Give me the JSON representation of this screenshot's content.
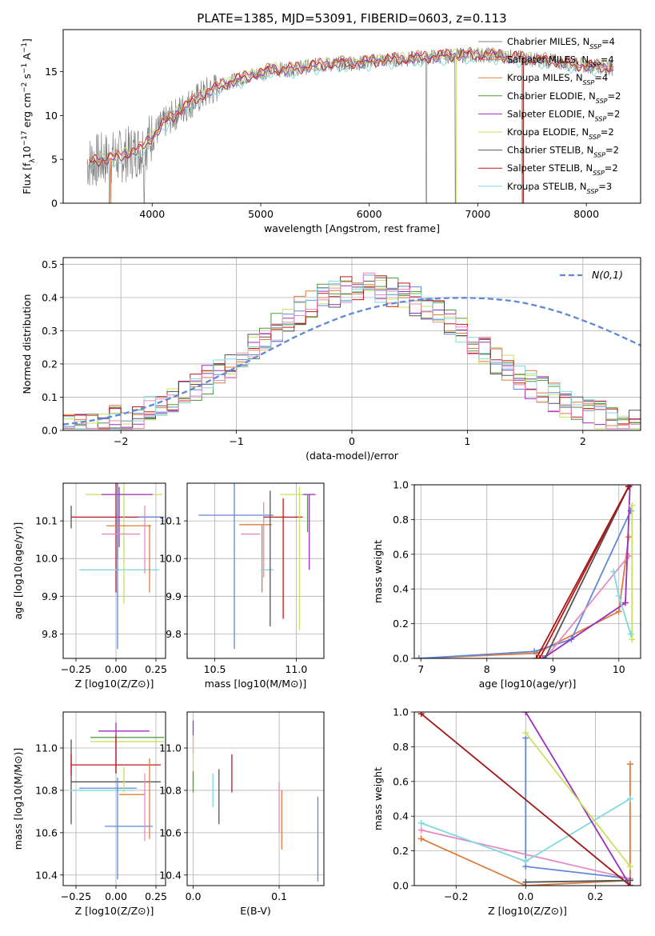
{
  "figure": {
    "title": "PLATE=1385, MJD=53091, FIBERID=0603, z=0.113"
  },
  "colors": {
    "Chabrier MILES": "#808080",
    "Salpeter MILES": "#e07b39",
    "Kroupa MILES": "#e07b39",
    "Chabrier ELODIE": "#4d9a3a",
    "Salpeter ELODIE": "#9b30c0",
    "Kroupa ELODIE": "#c9e060",
    "Chabrier STELIB": "#555555",
    "Salpeter STELIB": "#c01818",
    "Kroupa STELIB": "#80d8e0",
    "blue": "#5f88d6",
    "pink": "#e58ac0",
    "orange": "#e07b39",
    "darkred": "#a01818"
  },
  "chart_data": [
    {
      "id": "spectrum",
      "type": "line",
      "xlabel": "wavelength [Angstrom, rest frame]",
      "ylabel": "Flux [f_λ10^-17 erg cm^-2 s^-1 A^-1]",
      "xlim": [
        3180,
        8500
      ],
      "ylim": [
        0,
        19.8
      ],
      "xticks": [
        4000,
        5000,
        6000,
        7000,
        8000
      ],
      "yticks": [
        0,
        5,
        10,
        15
      ],
      "legend_position": "upper right",
      "legend": [
        {
          "label": "Chabrier MILES, N_SSP=4",
          "color": "#808080"
        },
        {
          "label": "Salpeter MILES, N_SSP=4",
          "color": "#e07b39"
        },
        {
          "label": "Kroupa MILES, N_SSP=4",
          "color": "#e07b39"
        },
        {
          "label": "Chabrier ELODIE, N_SSP=2",
          "color": "#4d9a3a"
        },
        {
          "label": "Salpeter ELODIE, N_SSP=2",
          "color": "#9b30c0"
        },
        {
          "label": "Kroupa ELODIE, N_SSP=2",
          "color": "#c9e060"
        },
        {
          "label": "Chabrier STELIB, N_SSP=2",
          "color": "#555555"
        },
        {
          "label": "Salpeter STELIB, N_SSP=2",
          "color": "#c01818"
        },
        {
          "label": "Kroupa STELIB, N_SSP=3",
          "color": "#80d8e0"
        }
      ],
      "continuum": {
        "x": [
          3400,
          3500,
          3700,
          3900,
          4100,
          4300,
          4500,
          4700,
          4900,
          5100,
          5300,
          5500,
          5700,
          5900,
          6100,
          6300,
          6500,
          6700,
          6900,
          7100,
          7300,
          7500,
          7700,
          7900,
          8100,
          8250
        ],
        "y": [
          4.6,
          4.9,
          5.3,
          6.2,
          9.0,
          11.0,
          12.6,
          13.8,
          14.5,
          15.2,
          15.3,
          15.7,
          15.9,
          16.0,
          16.3,
          16.4,
          16.6,
          16.8,
          16.9,
          16.9,
          16.7,
          16.4,
          16.2,
          15.8,
          15.6,
          15.4
        ]
      }
    },
    {
      "id": "residuals",
      "type": "bar",
      "xlabel": "(data-model)/error",
      "ylabel": "Normed distribution",
      "xlim": [
        -2.5,
        2.5
      ],
      "ylim": [
        0,
        0.52
      ],
      "xticks": [
        -2,
        -1,
        0,
        1,
        2
      ],
      "yticks": [
        0.0,
        0.1,
        0.2,
        0.3,
        0.4,
        0.5
      ],
      "legend_label": "N(0,1)",
      "legend_position": "upper right",
      "bin_width": 0.1,
      "bin_start": -2.5,
      "reference_values": [
        0.018,
        0.022,
        0.027,
        0.033,
        0.04,
        0.048,
        0.058,
        0.068,
        0.08,
        0.093,
        0.107,
        0.122,
        0.138,
        0.155,
        0.172,
        0.19,
        0.208,
        0.226,
        0.244,
        0.262,
        0.28,
        0.296,
        0.312,
        0.326,
        0.34,
        0.352,
        0.362,
        0.371,
        0.379,
        0.385,
        0.39,
        0.394,
        0.396,
        0.398,
        0.399,
        0.399,
        0.398,
        0.396,
        0.393,
        0.389,
        0.383,
        0.375,
        0.366,
        0.356,
        0.344,
        0.331,
        0.318,
        0.303,
        0.288,
        0.272,
        0.256
      ]
    },
    {
      "id": "age-vs-Z",
      "type": "scatter",
      "xlabel": "Z [log10(Z/Z⊙)]",
      "ylabel": "age [log10(age/yr)]",
      "xlim": [
        -0.33,
        0.31
      ],
      "ylim": [
        9.735,
        10.2
      ],
      "xticks": [
        -0.25,
        0.0,
        0.25
      ],
      "xticklabels": [
        "−0.25",
        "0.00",
        "0.25"
      ],
      "yticks": [
        9.8,
        9.9,
        10.0,
        10.1
      ],
      "points": [
        {
          "x": -0.28,
          "y": 10.11,
          "xerr": 0.0,
          "yerr": 0.03,
          "color": "#555555"
        },
        {
          "x": 0.0,
          "y": 10.11,
          "xerr": 0.28,
          "yerr": 0.0,
          "color": "#c01818"
        },
        {
          "x": 0.0,
          "y": 10.11,
          "xerr": 0.0,
          "yerr": 0.2,
          "color": "#c01818"
        },
        {
          "x": 0.02,
          "y": 9.97,
          "xerr": 0.25,
          "yerr": 0.0,
          "color": "#80d8e0"
        },
        {
          "x": 0.05,
          "y": 10.06,
          "xerr": 0.0,
          "yerr": 0.18,
          "color": "#c9e060"
        },
        {
          "x": 0.05,
          "y": 10.17,
          "xerr": 0.24,
          "yerr": 0.0,
          "color": "#c9e060"
        },
        {
          "x": 0.07,
          "y": 10.17,
          "xerr": 0.16,
          "yerr": 0.0,
          "color": "#9b30c0"
        },
        {
          "x": 0.01,
          "y": 10.12,
          "xerr": 0.0,
          "yerr": 0.12,
          "color": "#4d9a3a"
        },
        {
          "x": 0.02,
          "y": 10.11,
          "xerr": 0.0,
          "yerr": 0.08,
          "color": "#9b30c0"
        },
        {
          "x": 0.01,
          "y": 10.0,
          "xerr": 0.0,
          "yerr": 0.24,
          "color": "#5f88d6"
        },
        {
          "x": 0.03,
          "y": 10.065,
          "xerr": 0.12,
          "yerr": 0.0,
          "color": "#e58ac0"
        },
        {
          "x": 0.08,
          "y": 10.087,
          "xerr": 0.14,
          "yerr": 0.0,
          "color": "#e07b39"
        },
        {
          "x": 0.18,
          "y": 10.05,
          "xerr": 0.0,
          "yerr": 0.09,
          "color": "#e58ac0"
        },
        {
          "x": 0.21,
          "y": 10.0,
          "xerr": 0.0,
          "yerr": 0.09,
          "color": "#e07b39"
        },
        {
          "x": 0.22,
          "y": 10.11,
          "xerr": 0.08,
          "yerr": 0.0,
          "color": "#5f88d6"
        }
      ]
    },
    {
      "id": "age-vs-mass",
      "type": "scatter",
      "xlabel": "mass [log10(M/M⊙)]",
      "ylabel": "",
      "xlim": [
        10.33,
        11.17
      ],
      "ylim": [
        9.735,
        10.2
      ],
      "xticks": [
        10.5,
        11.0
      ],
      "yticks": [
        9.8,
        9.9,
        10.0,
        10.1
      ],
      "points": [
        {
          "x": 10.62,
          "y": 10.0,
          "xerr": 0.0,
          "yerr": 0.24,
          "color": "#5f88d6"
        },
        {
          "x": 10.63,
          "y": 10.115,
          "xerr": 0.23,
          "yerr": 0.0,
          "color": "#5f88d6"
        },
        {
          "x": 10.75,
          "y": 10.09,
          "xerr": 0.1,
          "yerr": 0.0,
          "color": "#e07b39"
        },
        {
          "x": 10.72,
          "y": 10.065,
          "xerr": 0.06,
          "yerr": 0.0,
          "color": "#e58ac0"
        },
        {
          "x": 10.79,
          "y": 10.0,
          "xerr": 0.0,
          "yerr": 0.09,
          "color": "#e07b39"
        },
        {
          "x": 10.8,
          "y": 10.05,
          "xerr": 0.0,
          "yerr": 0.1,
          "color": "#e58ac0"
        },
        {
          "x": 10.82,
          "y": 9.97,
          "xerr": 0.04,
          "yerr": 0.0,
          "color": "#80d8e0"
        },
        {
          "x": 10.84,
          "y": 10.0,
          "xerr": 0.0,
          "yerr": 0.18,
          "color": "#555555"
        },
        {
          "x": 10.92,
          "y": 10.11,
          "xerr": 0.12,
          "yerr": 0.0,
          "color": "#c01818"
        },
        {
          "x": 10.92,
          "y": 10.0,
          "xerr": 0.0,
          "yerr": 0.16,
          "color": "#c01818"
        },
        {
          "x": 11.0,
          "y": 10.17,
          "xerr": 0.1,
          "yerr": 0.0,
          "color": "#c9e060"
        },
        {
          "x": 11.02,
          "y": 10.0,
          "xerr": 0.0,
          "yerr": 0.19,
          "color": "#c9e060"
        },
        {
          "x": 11.08,
          "y": 10.17,
          "xerr": 0.04,
          "yerr": 0.0,
          "color": "#9b30c0"
        },
        {
          "x": 11.08,
          "y": 10.07,
          "xerr": 0.0,
          "yerr": 0.1,
          "color": "#9b30c0"
        },
        {
          "x": 11.07,
          "y": 10.12,
          "xerr": 0.0,
          "yerr": 0.05,
          "color": "#4d9a3a"
        }
      ]
    },
    {
      "id": "mass-weight-vs-age",
      "type": "line",
      "xlabel": "age [log10(age/yr)]",
      "ylabel": "mass weight",
      "xlim": [
        6.9,
        10.33
      ],
      "ylim": [
        0,
        1.0
      ],
      "xticks": [
        7,
        8,
        9,
        10
      ],
      "yticks": [
        0.0,
        0.2,
        0.4,
        0.6,
        0.8,
        1.0
      ],
      "series": [
        {
          "color": "#e07b39",
          "x": [
            6.97,
            8.75,
            10.0,
            10.15
          ],
          "y": [
            0.0,
            0.03,
            0.27,
            0.7
          ]
        },
        {
          "color": "#5f88d6",
          "x": [
            6.97,
            8.72,
            9.28,
            10.18
          ],
          "y": [
            0.0,
            0.04,
            0.11,
            0.85
          ]
        },
        {
          "color": "#e58ac0",
          "x": [
            8.88,
            10.15
          ],
          "y": [
            0.0,
            0.59
          ]
        },
        {
          "color": "#9b30c0",
          "x": [
            8.85,
            10.1,
            10.17
          ],
          "y": [
            0.0,
            0.32,
            1.0
          ]
        },
        {
          "color": "#555555",
          "x": [
            8.88,
            10.15
          ],
          "y": [
            0.0,
            0.99
          ]
        },
        {
          "color": "#c01818",
          "x": [
            8.8,
            10.15
          ],
          "y": [
            0.0,
            0.99
          ]
        },
        {
          "color": "#a01818",
          "x": [
            8.75,
            10.15
          ],
          "y": [
            0.0,
            0.99
          ]
        },
        {
          "color": "#c9e060",
          "x": [
            10.2,
            10.2
          ],
          "y": [
            0.11,
            0.88
          ]
        },
        {
          "color": "#80d8e0",
          "x": [
            9.92,
            10.0,
            10.18
          ],
          "y": [
            0.5,
            0.36,
            0.14
          ]
        }
      ]
    },
    {
      "id": "mass-vs-Z",
      "type": "scatter",
      "xlabel": "Z [log10(Z/Z⊙)]",
      "ylabel": "mass [log10(M/M⊙)]",
      "xlim": [
        -0.33,
        0.31
      ],
      "ylim": [
        10.35,
        11.17
      ],
      "xticks": [
        -0.25,
        0.0,
        0.25
      ],
      "xticklabels": [
        "−0.25",
        "0.00",
        "0.25"
      ],
      "yticks": [
        10.4,
        10.6,
        10.8,
        11.0
      ],
      "points": [
        {
          "x": -0.28,
          "y": 10.84,
          "xerr": 0.0,
          "yerr": 0.2,
          "color": "#555555"
        },
        {
          "x": 0.0,
          "y": 10.84,
          "xerr": 0.28,
          "yerr": 0.0,
          "color": "#555555"
        },
        {
          "x": 0.0,
          "y": 10.92,
          "xerr": 0.28,
          "yerr": 0.0,
          "color": "#c01818"
        },
        {
          "x": -0.28,
          "y": 10.92,
          "xerr": 0.0,
          "yerr": 0.05,
          "color": "#c01818"
        },
        {
          "x": 0.07,
          "y": 11.05,
          "xerr": 0.23,
          "yerr": 0.0,
          "color": "#4d9a3a"
        },
        {
          "x": 0.07,
          "y": 11.03,
          "xerr": 0.23,
          "yerr": 0.0,
          "color": "#c9e060"
        },
        {
          "x": 0.05,
          "y": 11.08,
          "xerr": 0.16,
          "yerr": 0.0,
          "color": "#9b30c0"
        },
        {
          "x": 0.0,
          "y": 11.0,
          "xerr": 0.0,
          "yerr": 0.12,
          "color": "#9b30c0"
        },
        {
          "x": -0.09,
          "y": 10.8,
          "xerr": 0.2,
          "yerr": 0.0,
          "color": "#80d8e0"
        },
        {
          "x": -0.05,
          "y": 10.81,
          "xerr": 0.18,
          "yerr": 0.0,
          "color": "#5f88d6"
        },
        {
          "x": 0.08,
          "y": 10.63,
          "xerr": 0.15,
          "yerr": 0.0,
          "color": "#5f88d6"
        },
        {
          "x": 0.01,
          "y": 10.62,
          "xerr": 0.0,
          "yerr": 0.24,
          "color": "#5f88d6"
        },
        {
          "x": 0.05,
          "y": 10.85,
          "xerr": 0.0,
          "yerr": 0.06,
          "color": "#c9e060"
        },
        {
          "x": 0.1,
          "y": 10.78,
          "xerr": 0.08,
          "yerr": 0.0,
          "color": "#e07b39"
        },
        {
          "x": 0.18,
          "y": 10.72,
          "xerr": 0.0,
          "yerr": 0.16,
          "color": "#e58ac0"
        },
        {
          "x": 0.21,
          "y": 10.76,
          "xerr": 0.0,
          "yerr": 0.19,
          "color": "#e07b39"
        },
        {
          "x": 0.0,
          "y": 10.97,
          "xerr": 0.0,
          "yerr": 0.09,
          "color": "#c01818"
        }
      ]
    },
    {
      "id": "mass-vs-ebv",
      "type": "scatter",
      "xlabel": "E(B-V)",
      "ylabel": "",
      "xlim": [
        -0.007,
        0.152
      ],
      "ylim": [
        10.35,
        11.17
      ],
      "xticks": [
        0.0,
        0.1
      ],
      "yticks": [
        10.4,
        10.6,
        10.8,
        11.0
      ],
      "points": [
        {
          "x": 0.0,
          "y": 11.05,
          "xerr": 0.0,
          "yerr": 0.08,
          "color": "#9b30c0"
        },
        {
          "x": 0.0,
          "y": 10.92,
          "xerr": 0.0,
          "yerr": 0.14,
          "color": "#c9e060"
        },
        {
          "x": 0.0,
          "y": 10.84,
          "xerr": 0.0,
          "yerr": 0.05,
          "color": "#4d9a3a"
        },
        {
          "x": 0.023,
          "y": 10.8,
          "xerr": 0.0,
          "yerr": 0.08,
          "color": "#80d8e0"
        },
        {
          "x": 0.03,
          "y": 10.77,
          "xerr": 0.0,
          "yerr": 0.13,
          "color": "#555555"
        },
        {
          "x": 0.045,
          "y": 10.88,
          "xerr": 0.0,
          "yerr": 0.09,
          "color": "#c01818"
        },
        {
          "x": 0.1,
          "y": 10.72,
          "xerr": 0.0,
          "yerr": 0.12,
          "color": "#e58ac0"
        },
        {
          "x": 0.103,
          "y": 10.66,
          "xerr": 0.0,
          "yerr": 0.14,
          "color": "#e07b39"
        },
        {
          "x": 0.145,
          "y": 10.57,
          "xerr": 0.0,
          "yerr": 0.2,
          "color": "#5f88d6"
        }
      ]
    },
    {
      "id": "mass-weight-vs-Z",
      "type": "line",
      "xlabel": "Z [log10(Z/Z⊙)]",
      "ylabel": "mass weight",
      "xlim": [
        -0.32,
        0.33
      ],
      "ylim": [
        0,
        1.0
      ],
      "xticks": [
        -0.2,
        0.0,
        0.2
      ],
      "xticklabels": [
        "−0.2",
        "0.0",
        "0.2"
      ],
      "yticks": [
        0.0,
        0.2,
        0.4,
        0.6,
        0.8,
        1.0
      ],
      "series": [
        {
          "color": "#e07b39",
          "x": [
            -0.3,
            0.0,
            0.3,
            0.3
          ],
          "y": [
            0.27,
            0.0,
            0.03,
            0.7
          ]
        },
        {
          "color": "#5f88d6",
          "x": [
            0.0,
            0.0,
            0.3
          ],
          "y": [
            0.85,
            0.11,
            0.04
          ]
        },
        {
          "color": "#e58ac0",
          "x": [
            -0.3,
            0.3
          ],
          "y": [
            0.32,
            0.04
          ]
        },
        {
          "color": "#80d8e0",
          "x": [
            -0.3,
            0.0,
            0.3
          ],
          "y": [
            0.36,
            0.14,
            0.5
          ]
        },
        {
          "color": "#9b30c0",
          "x": [
            0.0,
            0.3
          ],
          "y": [
            1.0,
            0.0
          ]
        },
        {
          "color": "#c9e060",
          "x": [
            0.0,
            0.3
          ],
          "y": [
            0.88,
            0.11
          ]
        },
        {
          "color": "#a01818",
          "x": [
            -0.3,
            0.3
          ],
          "y": [
            0.99,
            0.0
          ]
        },
        {
          "color": "#555555",
          "x": [
            0.0,
            0.3
          ],
          "y": [
            0.02,
            0.03
          ]
        }
      ]
    }
  ]
}
